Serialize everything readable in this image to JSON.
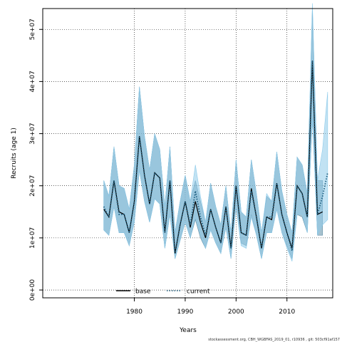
{
  "chart_data": {
    "type": "line",
    "xlabel": "Years",
    "ylabel": "Recruits (age 1)",
    "xlim": [
      1962,
      2019
    ],
    "ylim": [
      -1500000,
      54000000
    ],
    "x_ticks": [
      1980,
      1990,
      2000,
      2010
    ],
    "y_ticks": [
      0,
      10000000,
      20000000,
      30000000,
      40000000,
      50000000
    ],
    "y_tick_labels": [
      "0e+00",
      "1e+07",
      "2e+07",
      "3e+07",
      "4e+07",
      "5e+07"
    ],
    "grid": true,
    "legend_position": "bottom-center",
    "legend": [
      {
        "label": "base",
        "style": "solid",
        "color": "#000000"
      },
      {
        "label": "current",
        "style": "dotted",
        "color": "#1f5f80"
      }
    ],
    "x": [
      1974,
      1975,
      1976,
      1977,
      1978,
      1979,
      1980,
      1981,
      1982,
      1983,
      1984,
      1985,
      1986,
      1987,
      1988,
      1989,
      1990,
      1991,
      1992,
      1993,
      1994,
      1995,
      1996,
      1997,
      1998,
      1999,
      2000,
      2001,
      2002,
      2003,
      2004,
      2005,
      2006,
      2007,
      2008,
      2009,
      2010,
      2011,
      2012,
      2013,
      2014,
      2015,
      2016,
      2017,
      2018
    ],
    "series": [
      {
        "name": "base",
        "color": "#000000",
        "band_color": "#5f8ea6",
        "values": [
          15.5,
          14,
          21,
          15,
          14.5,
          11,
          17,
          29.5,
          22,
          16.5,
          22.5,
          21.5,
          11,
          21,
          7,
          12.5,
          17,
          12,
          17,
          13,
          10,
          15.5,
          12,
          9,
          16,
          8,
          20,
          11,
          10.5,
          19.5,
          14,
          8,
          14,
          13.5,
          20.5,
          14.5,
          11,
          8,
          20,
          18.5,
          14,
          44,
          14.5,
          15,
          null
        ],
        "upper": [
          21,
          18,
          27.5,
          20,
          19.5,
          15.5,
          24,
          39,
          29.5,
          23,
          30,
          27,
          16,
          27.5,
          11,
          17,
          22,
          17,
          21,
          17,
          13,
          20.5,
          16,
          12.5,
          20,
          11,
          25,
          15,
          14,
          25,
          18.5,
          11,
          18,
          17,
          26.5,
          19,
          14.5,
          11,
          25.5,
          24,
          18.5,
          54,
          21,
          21,
          null
        ],
        "lower": [
          11.5,
          10.5,
          16,
          11,
          11,
          8.5,
          13,
          23,
          17,
          13,
          17.5,
          16.5,
          8,
          14.5,
          6,
          9.5,
          13,
          10,
          13.5,
          10,
          8,
          11.5,
          9,
          7,
          12,
          6,
          16,
          9,
          8.5,
          14.5,
          10.5,
          6,
          11,
          11,
          15.5,
          11,
          8.5,
          6,
          14.5,
          14,
          11,
          33,
          10.5,
          10.5,
          null
        ]
      },
      {
        "name": "current",
        "color": "#1f5f80",
        "band_color": "#8ecbea",
        "values": [
          16,
          14,
          21,
          14.5,
          14.5,
          11,
          17,
          29.5,
          22,
          16.5,
          22.5,
          21.5,
          11,
          21,
          7,
          12.5,
          17,
          12.5,
          19,
          14,
          10.5,
          15.5,
          12,
          9,
          16,
          8,
          20,
          11,
          10.5,
          19,
          14,
          8,
          14,
          14,
          20.5,
          14.5,
          11,
          7.5,
          20,
          18.5,
          14,
          44,
          14.5,
          18,
          22.5
        ],
        "upper": [
          21,
          18,
          27.5,
          20,
          19.5,
          15.5,
          24,
          39,
          29.5,
          23,
          30,
          27,
          16,
          27.5,
          11,
          17,
          22,
          17,
          24,
          18,
          13,
          20.5,
          16,
          12.5,
          20,
          11,
          25,
          15,
          14,
          25,
          18.5,
          11,
          18.5,
          17,
          26.5,
          19,
          14.5,
          11,
          25.5,
          24,
          18.5,
          55,
          21,
          27,
          38
        ],
        "lower": [
          11.5,
          10.5,
          16,
          11,
          11,
          8.5,
          13,
          23,
          17,
          13,
          17.5,
          16.5,
          8,
          14.5,
          6,
          9.5,
          13,
          10,
          14,
          10.5,
          8,
          11.5,
          9,
          7,
          12,
          6,
          16,
          8.5,
          8,
          14,
          10.5,
          6,
          11,
          11,
          15.5,
          11,
          8,
          5.5,
          14.5,
          14.5,
          11,
          33,
          10.5,
          12.5,
          13.5
        ]
      }
    ],
    "value_scale": 1000000
  },
  "footer": "stockassessment.org, CBH_WGBFAS_2019_01, r10936 , git: 503cf91af157"
}
